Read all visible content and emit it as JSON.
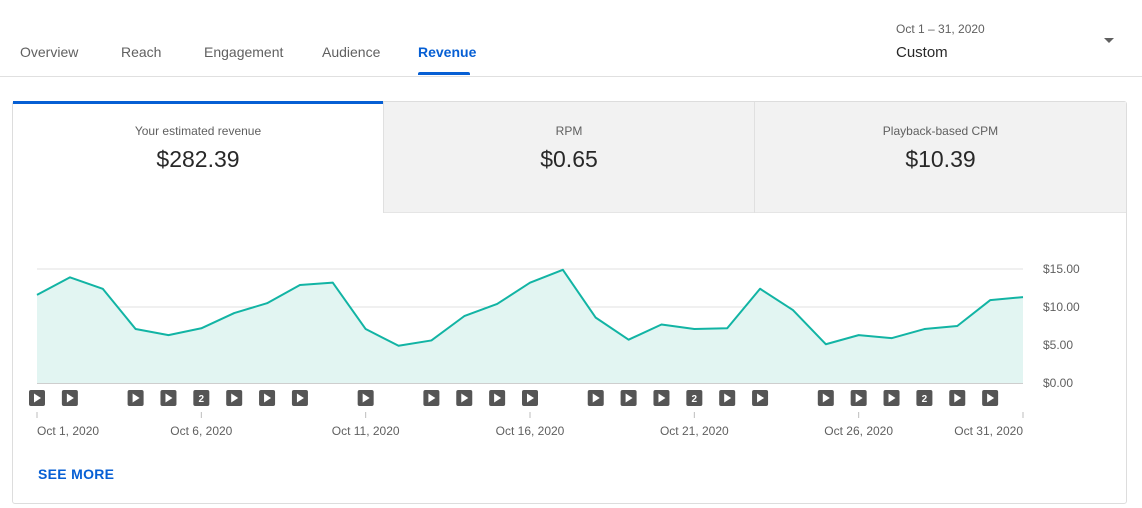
{
  "tabs": [
    {
      "label": "Overview"
    },
    {
      "label": "Reach"
    },
    {
      "label": "Engagement"
    },
    {
      "label": "Audience"
    },
    {
      "label": "Revenue"
    }
  ],
  "active_tab": "Revenue",
  "date_picker": {
    "range": "Oct 1 – 31, 2020",
    "mode": "Custom",
    "icon": "chevron-down-icon"
  },
  "metrics": [
    {
      "label": "Your estimated revenue",
      "value": "$282.39"
    },
    {
      "label": "RPM",
      "value": "$0.65"
    },
    {
      "label": "Playback-based CPM",
      "value": "$10.39"
    }
  ],
  "see_more": "SEE MORE",
  "colors": {
    "accent": "#065fd4",
    "line": "#12b4a4",
    "fill": "#e2f5f2",
    "marker": "#555555"
  },
  "chart_data": {
    "type": "area",
    "x": [
      "Oct 1, 2020",
      "Oct 2, 2020",
      "Oct 3, 2020",
      "Oct 4, 2020",
      "Oct 5, 2020",
      "Oct 6, 2020",
      "Oct 7, 2020",
      "Oct 8, 2020",
      "Oct 9, 2020",
      "Oct 10, 2020",
      "Oct 11, 2020",
      "Oct 12, 2020",
      "Oct 13, 2020",
      "Oct 14, 2020",
      "Oct 15, 2020",
      "Oct 16, 2020",
      "Oct 17, 2020",
      "Oct 18, 2020",
      "Oct 19, 2020",
      "Oct 20, 2020",
      "Oct 21, 2020",
      "Oct 22, 2020",
      "Oct 23, 2020",
      "Oct 24, 2020",
      "Oct 25, 2020",
      "Oct 26, 2020",
      "Oct 27, 2020",
      "Oct 28, 2020",
      "Oct 29, 2020",
      "Oct 30, 2020",
      "Oct 31, 2020"
    ],
    "values": [
      11.6,
      13.9,
      12.4,
      7.1,
      6.3,
      7.2,
      9.2,
      10.5,
      12.9,
      13.2,
      7.1,
      4.9,
      5.6,
      8.8,
      10.4,
      13.2,
      14.9,
      8.6,
      5.7,
      7.7,
      7.1,
      7.2,
      12.4,
      9.6,
      5.1,
      6.3,
      5.9,
      7.1,
      7.5,
      10.9,
      11.3
    ],
    "x_tick_labels": [
      "Oct 1, 2020",
      "Oct 6, 2020",
      "Oct 11, 2020",
      "Oct 16, 2020",
      "Oct 21, 2020",
      "Oct 26, 2020",
      "Oct 31, 2020"
    ],
    "x_tick_indices": [
      0,
      5,
      10,
      15,
      20,
      25,
      30
    ],
    "y_ticks": [
      {
        "value": 0,
        "label": "$0.00"
      },
      {
        "value": 5,
        "label": "$5.00"
      },
      {
        "value": 10,
        "label": "$10.00"
      },
      {
        "value": 15,
        "label": "$15.00"
      }
    ],
    "ylim": [
      0,
      15
    ],
    "grid": true,
    "video_markers": [
      {
        "day": 0,
        "label": ""
      },
      {
        "day": 1,
        "label": ""
      },
      {
        "day": 3,
        "label": ""
      },
      {
        "day": 4,
        "label": ""
      },
      {
        "day": 5,
        "label": "2"
      },
      {
        "day": 6,
        "label": ""
      },
      {
        "day": 7,
        "label": ""
      },
      {
        "day": 8,
        "label": ""
      },
      {
        "day": 10,
        "label": ""
      },
      {
        "day": 12,
        "label": ""
      },
      {
        "day": 13,
        "label": ""
      },
      {
        "day": 14,
        "label": ""
      },
      {
        "day": 15,
        "label": ""
      },
      {
        "day": 17,
        "label": ""
      },
      {
        "day": 18,
        "label": ""
      },
      {
        "day": 19,
        "label": ""
      },
      {
        "day": 20,
        "label": "2"
      },
      {
        "day": 21,
        "label": ""
      },
      {
        "day": 22,
        "label": ""
      },
      {
        "day": 24,
        "label": ""
      },
      {
        "day": 25,
        "label": ""
      },
      {
        "day": 26,
        "label": ""
      },
      {
        "day": 27,
        "label": "2"
      },
      {
        "day": 28,
        "label": ""
      },
      {
        "day": 29,
        "label": ""
      }
    ]
  }
}
